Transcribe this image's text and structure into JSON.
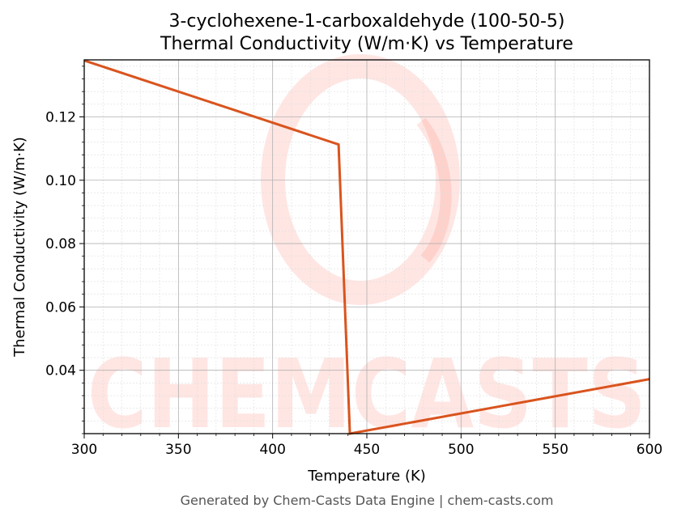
{
  "title_line1": "3-cyclohexene-1-carboxaldehyde (100-50-5)",
  "title_line2": "Thermal Conductivity (W/m·K) vs Temperature",
  "footer": "Generated by Chem-Casts Data Engine | chem-casts.com",
  "watermark": "CHEMCASTS",
  "colors": {
    "line": "#d9541e",
    "watermark": "#ff6b5a",
    "grid_major": "#b0b0b0",
    "grid_minor": "#dddddd"
  },
  "chart_data": {
    "type": "line",
    "xlabel": "Temperature (K)",
    "ylabel": "Thermal Conductivity (W/m·K)",
    "xlim": [
      300,
      600
    ],
    "ylim": [
      0.02,
      0.138
    ],
    "xticks": [
      300,
      350,
      400,
      450,
      500,
      550,
      600
    ],
    "yticks": [
      0.04,
      0.06,
      0.08,
      0.1,
      0.12
    ],
    "ytick_labels": [
      "0.04",
      "0.06",
      "0.08",
      "0.10",
      "0.12"
    ],
    "grid": true,
    "series": [
      {
        "x": [
          300,
          435,
          441,
          600
        ],
        "y": [
          0.1378,
          0.1113,
          0.02,
          0.0372
        ]
      }
    ]
  }
}
